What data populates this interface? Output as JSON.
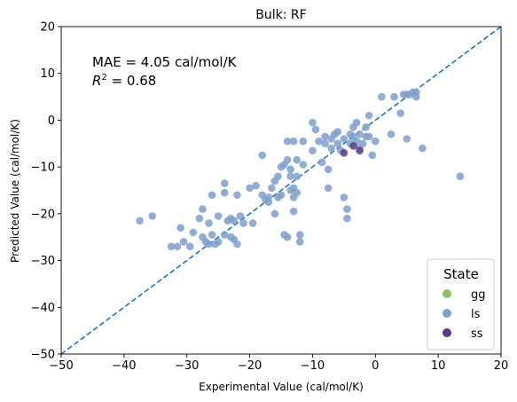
{
  "chart_data": {
    "type": "scatter",
    "title": "Bulk: RF",
    "xlabel": "Experimental Value (cal/mol/K)",
    "ylabel": "Predicted Value (cal/mol/K)",
    "xlim": [
      -50,
      20
    ],
    "ylim": [
      -50,
      20
    ],
    "xticks": [
      -50,
      -40,
      -30,
      -20,
      -10,
      0,
      10,
      20
    ],
    "yticks": [
      -50,
      -40,
      -30,
      -20,
      -10,
      0,
      10,
      20
    ],
    "grid": false,
    "reference_line": {
      "style": "dashed",
      "color": "#1f77b4",
      "from": [
        -50,
        -50
      ],
      "to": [
        20,
        20
      ]
    },
    "annotations": [
      "MAE = 4.05 cal/mol/K",
      "R² = 0.68"
    ],
    "legend": {
      "title": "State",
      "placement": "bottom-right"
    },
    "series": [
      {
        "name": "gg",
        "color": "#8fbf6a",
        "points": []
      },
      {
        "name": "ls",
        "color": "#7f9fcc",
        "points": [
          [
            -37.5,
            -21.5
          ],
          [
            -35.5,
            -20.5
          ],
          [
            -32.5,
            -27.0
          ],
          [
            -31.5,
            -27.0
          ],
          [
            -31.0,
            -23.0
          ],
          [
            -30.5,
            -26.0
          ],
          [
            -29.5,
            -27.0
          ],
          [
            -29.0,
            -24.0
          ],
          [
            -28.0,
            -21.0
          ],
          [
            -27.5,
            -19.0
          ],
          [
            -27.5,
            -25.0
          ],
          [
            -27.0,
            -26.0
          ],
          [
            -26.5,
            -26.5
          ],
          [
            -26.5,
            -22.0
          ],
          [
            -26.0,
            -16.0
          ],
          [
            -26.0,
            -24.5
          ],
          [
            -25.5,
            -26.5
          ],
          [
            -25.0,
            -20.5
          ],
          [
            -25.0,
            -26.0
          ],
          [
            -24.0,
            -24.5
          ],
          [
            -24.0,
            -13.5
          ],
          [
            -24.0,
            -15.5
          ],
          [
            -23.5,
            -21.5
          ],
          [
            -23.0,
            -21.0
          ],
          [
            -23.0,
            -25.0
          ],
          [
            -22.5,
            -21.5
          ],
          [
            -22.5,
            -25.5
          ],
          [
            -22.0,
            -26.5
          ],
          [
            -22.0,
            -16.0
          ],
          [
            -21.5,
            -20.5
          ],
          [
            -21.0,
            -22.0
          ],
          [
            -20.0,
            -14.5
          ],
          [
            -19.5,
            -22.0
          ],
          [
            -19.0,
            -14.0
          ],
          [
            -18.0,
            -7.5
          ],
          [
            -18.0,
            -16.0
          ],
          [
            -17.5,
            -17.0
          ],
          [
            -17.0,
            -17.5
          ],
          [
            -17.0,
            -16.5
          ],
          [
            -16.5,
            -14.5
          ],
          [
            -16.0,
            -20.0
          ],
          [
            -16.0,
            -13.0
          ],
          [
            -15.5,
            -12.0
          ],
          [
            -15.5,
            -16.5
          ],
          [
            -15.0,
            -16.0
          ],
          [
            -15.0,
            -10.0
          ],
          [
            -14.5,
            -9.5
          ],
          [
            -14.5,
            -24.5
          ],
          [
            -14.0,
            -25.0
          ],
          [
            -14.0,
            -4.5
          ],
          [
            -14.0,
            -8.5
          ],
          [
            -13.5,
            -10.5
          ],
          [
            -13.5,
            -15.0
          ],
          [
            -13.5,
            -12.0
          ],
          [
            -13.0,
            -14.5
          ],
          [
            -13.0,
            -19.5
          ],
          [
            -13.0,
            -4.5
          ],
          [
            -13.0,
            -16.5
          ],
          [
            -12.5,
            -8.5
          ],
          [
            -12.5,
            -15.5
          ],
          [
            -12.5,
            -12.0
          ],
          [
            -12.0,
            -24.5
          ],
          [
            -12.0,
            -26.0
          ],
          [
            -11.5,
            -9.5
          ],
          [
            -11.5,
            -4.5
          ],
          [
            -10.0,
            -0.5
          ],
          [
            -10.0,
            -6.5
          ],
          [
            -9.5,
            -2.0
          ],
          [
            -9.0,
            -4.5
          ],
          [
            -8.5,
            -9.0
          ],
          [
            -8.0,
            -3.5
          ],
          [
            -8.0,
            -5.0
          ],
          [
            -7.5,
            -14.5
          ],
          [
            -7.5,
            -10.5
          ],
          [
            -7.0,
            -4.0
          ],
          [
            -7.0,
            -6.0
          ],
          [
            -6.5,
            -3.0
          ],
          [
            -6.0,
            -5.0
          ],
          [
            -6.0,
            -2.5
          ],
          [
            -5.5,
            -6.5
          ],
          [
            -5.0,
            -16.5
          ],
          [
            -5.0,
            -4.0
          ],
          [
            -4.5,
            -19.0
          ],
          [
            -4.5,
            -21.0
          ],
          [
            -4.0,
            -5.0
          ],
          [
            -4.0,
            -3.0
          ],
          [
            -3.5,
            -1.5
          ],
          [
            -3.5,
            -3.5
          ],
          [
            -3.0,
            -0.5
          ],
          [
            -3.0,
            -4.5
          ],
          [
            -2.5,
            -6.0
          ],
          [
            -2.5,
            -3.0
          ],
          [
            -2.0,
            -5.0
          ],
          [
            -1.5,
            -1.5
          ],
          [
            -1.5,
            -3.5
          ],
          [
            -1.0,
            1.0
          ],
          [
            -1.0,
            -3.5
          ],
          [
            -0.5,
            -7.5
          ],
          [
            0.0,
            -4.5
          ],
          [
            1.0,
            5.0
          ],
          [
            2.5,
            -3.0
          ],
          [
            3.0,
            5.0
          ],
          [
            4.0,
            1.5
          ],
          [
            4.5,
            5.5
          ],
          [
            5.0,
            -4.0
          ],
          [
            5.0,
            5.5
          ],
          [
            5.5,
            5.5
          ],
          [
            6.0,
            6.0
          ],
          [
            6.5,
            6.0
          ],
          [
            6.5,
            5.0
          ],
          [
            7.5,
            -6.0
          ],
          [
            13.5,
            -12.0
          ]
        ]
      },
      {
        "name": "ss",
        "color": "#5b3a86",
        "points": [
          [
            -5.0,
            -7.0
          ],
          [
            -3.5,
            -5.5
          ],
          [
            -2.5,
            -6.5
          ]
        ]
      }
    ]
  }
}
